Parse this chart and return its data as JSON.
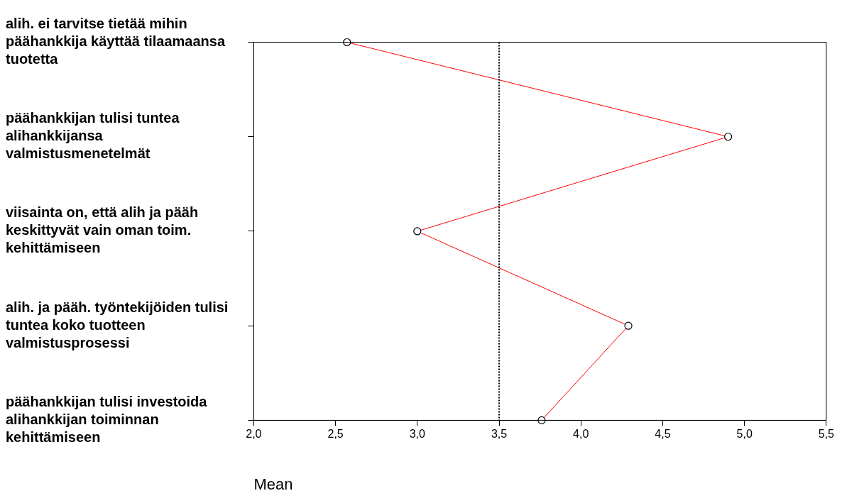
{
  "chart_data": {
    "type": "line",
    "orientation": "horizontal",
    "xlabel": "Mean",
    "categories": [
      "alih. ei tarvitse tietää mihin päähankkija käyttää tilaamaansa tuotetta",
      "päähankkijan tulisi tuntea alihankkijansa valmistusmenetelmät",
      "viisainta on, että alih ja pääh keskittyvät vain oman toim. kehittämiseen",
      "alih. ja pääh. työntekijöiden tulisi tuntea koko tuotteen valmistusprosessi",
      "päähankkijan tulisi investoida alihankkijan toiminnan kehittämiseen"
    ],
    "series": [
      {
        "color": "#ff0000",
        "values": [
          2.57,
          4.9,
          3.0,
          4.29,
          3.76
        ]
      }
    ],
    "marker": "circle",
    "line_style": "solid",
    "xlim": [
      2.0,
      5.5
    ],
    "xticks": [
      {
        "value": 2.0,
        "label": "2,0"
      },
      {
        "value": 2.5,
        "label": "2,5"
      },
      {
        "value": 3.0,
        "label": "3,0"
      },
      {
        "value": 3.5,
        "label": "3,5"
      },
      {
        "value": 4.0,
        "label": "4,0"
      },
      {
        "value": 4.5,
        "label": "4,5"
      },
      {
        "value": 5.0,
        "label": "5,0"
      },
      {
        "value": 5.5,
        "label": "5,5"
      }
    ],
    "ref_lines": [
      {
        "axis": "x",
        "value": 3.5,
        "color": "#000000",
        "line_style": "dotted"
      }
    ]
  }
}
